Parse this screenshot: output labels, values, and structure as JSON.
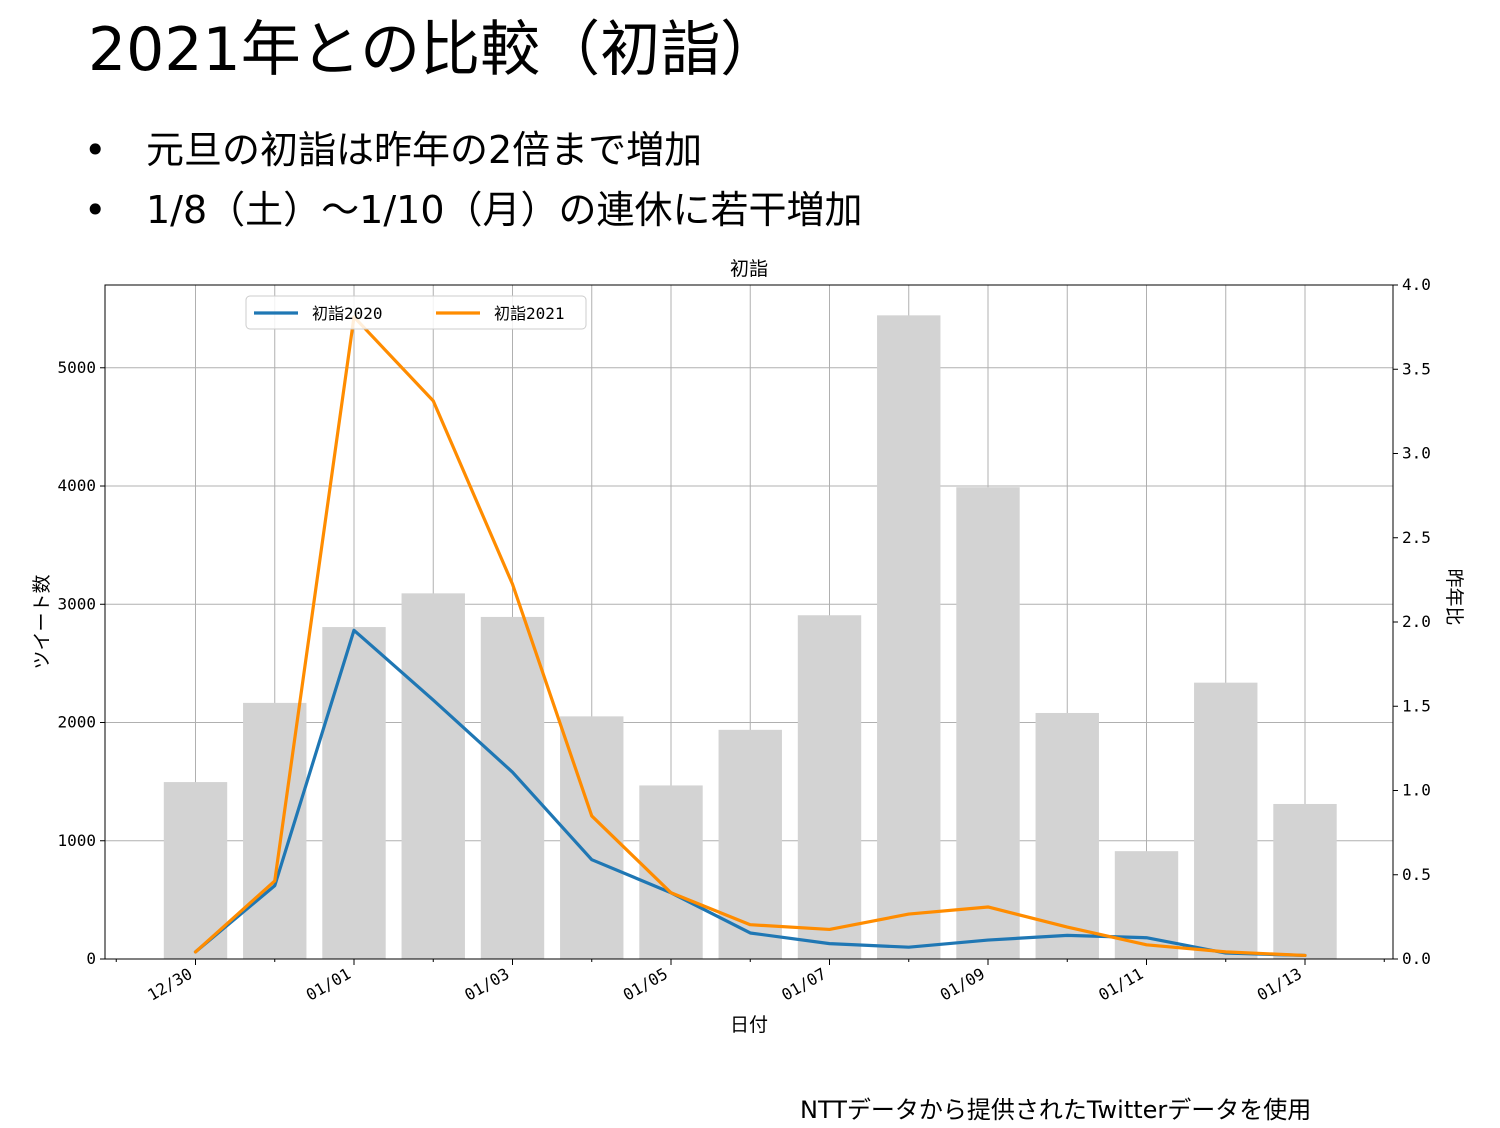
{
  "slide": {
    "title": "2021年との比較（初詣）",
    "bullets": [
      "元旦の初詣は昨年の2倍まで増加",
      "1/8（土）～1/10（月）の連休に若干増加"
    ],
    "bullet_symbol": "•",
    "source_note": "NTTデータから提供されたTwitterデータを使用"
  },
  "chart_data": {
    "type": "bar",
    "title": "初詣",
    "xlabel": "日付",
    "ylabel": "ツイート数",
    "y2label": "昨年比",
    "categories": [
      "12/30",
      "12/31",
      "01/01",
      "01/02",
      "01/03",
      "01/04",
      "01/05",
      "01/06",
      "01/07",
      "01/08",
      "01/09",
      "01/10",
      "01/11",
      "01/12",
      "01/13"
    ],
    "x_tick_labels": [
      "12/30",
      "01/01",
      "01/03",
      "01/05",
      "01/07",
      "01/09",
      "01/11",
      "01/13"
    ],
    "ylim": [
      0,
      5700
    ],
    "y_ticks": [
      "0",
      "1000",
      "2000",
      "3000",
      "4000",
      "5000"
    ],
    "y2lim": [
      0,
      4.0
    ],
    "y2_ticks": [
      "0.0",
      "0.5",
      "1.0",
      "1.5",
      "2.0",
      "2.5",
      "3.0",
      "3.5",
      "4.0"
    ],
    "bars": {
      "axis": "right",
      "color": "#d3d3d3",
      "values": [
        1.05,
        1.52,
        1.97,
        2.17,
        2.03,
        1.44,
        1.03,
        1.36,
        2.04,
        3.82,
        2.8,
        1.46,
        0.64,
        1.64,
        0.92
      ]
    },
    "series": [
      {
        "name": "初詣2020",
        "axis": "left",
        "color": "#1f77b4",
        "values": [
          60,
          620,
          2780,
          2190,
          1580,
          840,
          560,
          220,
          130,
          100,
          160,
          200,
          180,
          50,
          30
        ]
      },
      {
        "name": "初詣2021",
        "axis": "left",
        "color": "#ff8c00",
        "values": [
          60,
          660,
          5430,
          4720,
          3170,
          1210,
          560,
          290,
          250,
          380,
          440,
          270,
          120,
          60,
          30
        ]
      }
    ],
    "grid": true,
    "legend_position": "top-left"
  }
}
